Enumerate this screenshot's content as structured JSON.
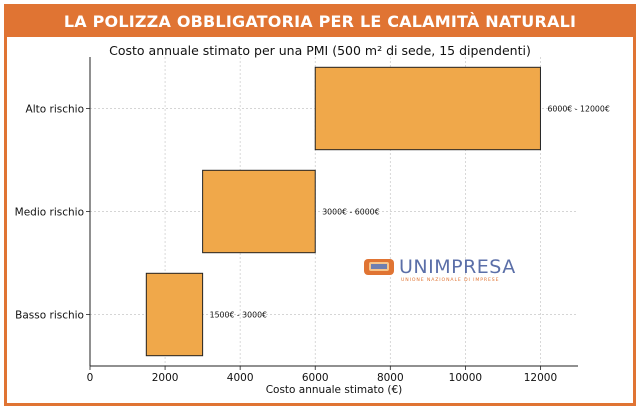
{
  "title": "LA POLIZZA OBBLIGATORIA PER LE CALAMITÀ NATURALI",
  "logo_text": "UNIMPRESA",
  "logo_subtext": "UNIONE NAZIONALE DI IMPRESE",
  "colors": {
    "accent": "#e07433",
    "bar": "#f0a84a",
    "bar_stroke": "#222222",
    "grid": "#c8c8c8",
    "logo_text": "#5b6fa8"
  },
  "chart_data": {
    "type": "bar",
    "orientation": "horizontal",
    "bar_style": "floating-range",
    "title": "Costo annuale stimato per una PMI (500 m² di sede, 15 dipendenti)",
    "xlabel": "Costo annuale stimato (€)",
    "ylabel": "",
    "xlim": [
      0,
      13000
    ],
    "xticks": [
      0,
      2000,
      4000,
      6000,
      8000,
      10000,
      12000
    ],
    "grid": true,
    "categories": [
      "Basso rischio",
      "Medio rischio",
      "Alto rischio"
    ],
    "ranges": [
      {
        "min": 1500,
        "max": 3000,
        "label": "1500€ - 3000€"
      },
      {
        "min": 3000,
        "max": 6000,
        "label": "3000€ - 6000€"
      },
      {
        "min": 6000,
        "max": 12000,
        "label": "6000€ - 12000€"
      }
    ]
  }
}
